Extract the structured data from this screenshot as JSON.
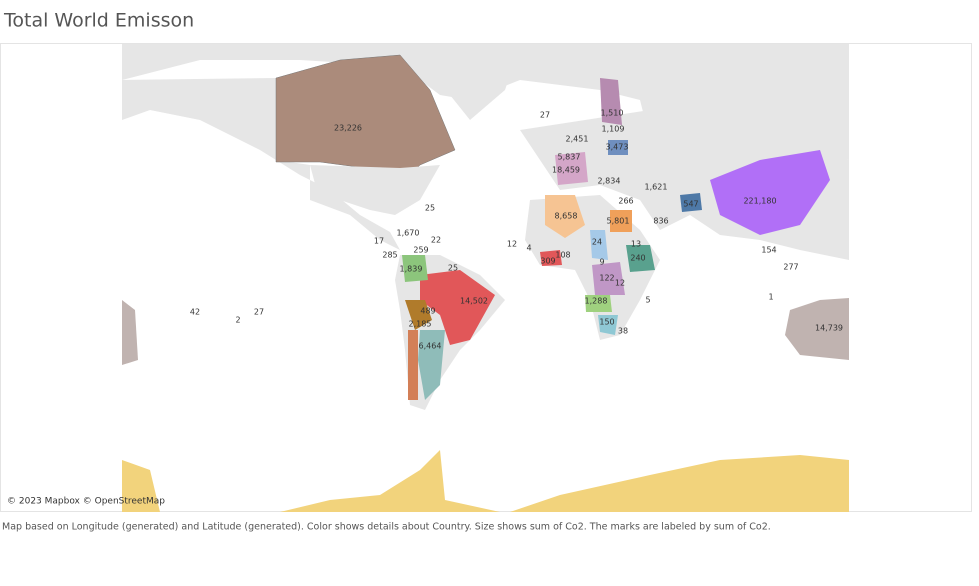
{
  "header": {
    "title": "Total World Emisson"
  },
  "map": {
    "attribution": "© 2023 Mapbox © OpenStreetMap",
    "labels": [
      "23,226",
      "221,180",
      "14,739",
      "14,502",
      "6,464",
      "8,658",
      "5,801",
      "18,459",
      "5,837",
      "3,473",
      "2,451",
      "1,109",
      "1,510",
      "27",
      "2,834",
      "1,621",
      "266",
      "547",
      "836",
      "13",
      "240",
      "24",
      "9",
      "108",
      "309",
      "4",
      "12",
      "122",
      "12",
      "1,288",
      "150",
      "38",
      "5",
      "1",
      "277",
      "154",
      "1,839",
      "259",
      "22",
      "25",
      "25",
      "17",
      "285",
      "489",
      "2,185",
      "27",
      "2",
      "42",
      "1,670"
    ]
  },
  "caption": "Map based on Longitude (generated) and Latitude (generated).  Color shows details about Country.  Size shows sum of Co2.  The marks are labeled by sum of Co2."
}
